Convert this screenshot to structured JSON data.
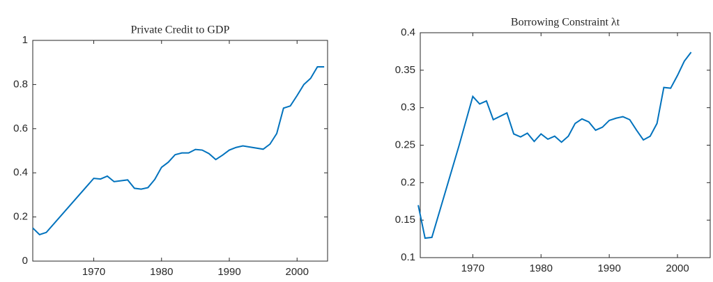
{
  "chart_data": [
    {
      "type": "line",
      "title": "Private Credit to GDP",
      "x": [
        1961,
        1962,
        1963,
        1970,
        1971,
        1972,
        1973,
        1975,
        1976,
        1977,
        1978,
        1979,
        1980,
        1981,
        1982,
        1983,
        1984,
        1985,
        1986,
        1987,
        1988,
        1989,
        1990,
        1991,
        1992,
        1995,
        1996,
        1997,
        1998,
        1999,
        2000,
        2001,
        2002,
        2003,
        2004
      ],
      "series": [
        {
          "name": "Private Credit to GDP",
          "color": "#0072bd",
          "values": [
            0.15,
            0.12,
            0.13,
            0.375,
            0.372,
            0.385,
            0.36,
            0.368,
            0.33,
            0.326,
            0.333,
            0.37,
            0.425,
            0.448,
            0.482,
            0.49,
            0.49,
            0.506,
            0.503,
            0.487,
            0.46,
            0.48,
            0.503,
            0.515,
            0.522,
            0.507,
            0.53,
            0.578,
            0.693,
            0.703,
            0.75,
            0.8,
            0.828,
            0.88,
            0.88
          ]
        }
      ],
      "xlim": [
        1961,
        2004.5
      ],
      "xticks": [
        1970,
        1980,
        1990,
        2000
      ],
      "ylim": [
        0,
        1
      ],
      "yticks": [
        0,
        0.2,
        0.4,
        0.6,
        0.8,
        1
      ]
    },
    {
      "type": "line",
      "title": "Borrowing Constraint λt",
      "x": [
        1962,
        1963,
        1964,
        1968,
        1970,
        1971,
        1972,
        1973,
        1975,
        1976,
        1977,
        1978,
        1979,
        1980,
        1981,
        1982,
        1983,
        1984,
        1985,
        1986,
        1987,
        1988,
        1989,
        1990,
        1991,
        1992,
        1993,
        1994,
        1995,
        1996,
        1997,
        1998,
        1999,
        2000,
        2001,
        2002
      ],
      "series": [
        {
          "name": "Borrowing Constraint",
          "color": "#0072bd",
          "values": [
            0.17,
            0.126,
            0.127,
            0.25,
            0.315,
            0.305,
            0.309,
            0.284,
            0.293,
            0.265,
            0.261,
            0.266,
            0.255,
            0.265,
            0.258,
            0.262,
            0.254,
            0.262,
            0.279,
            0.285,
            0.281,
            0.27,
            0.274,
            0.283,
            0.286,
            0.288,
            0.284,
            0.27,
            0.257,
            0.262,
            0.279,
            0.327,
            0.326,
            0.343,
            0.362,
            0.374
          ]
        }
      ],
      "xlim": [
        1962.3,
        2004.8
      ],
      "xticks": [
        1970,
        1980,
        1990,
        2000
      ],
      "ylim": [
        0.1,
        0.4
      ],
      "yticks": [
        0.1,
        0.15,
        0.2,
        0.25,
        0.3,
        0.35,
        0.4
      ]
    }
  ]
}
